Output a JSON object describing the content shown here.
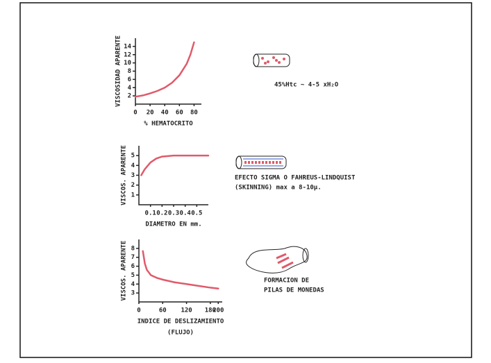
{
  "chart_data": [
    {
      "type": "line",
      "ylabel": "VISCOSIDAD APARENTE",
      "xlabel": [
        "% HEMATOCRITO"
      ],
      "x": [
        0,
        10,
        20,
        30,
        40,
        50,
        60,
        70,
        75,
        80
      ],
      "values": [
        1.8,
        2.1,
        2.6,
        3.2,
        4.0,
        5.2,
        7.0,
        9.8,
        12,
        15
      ],
      "color": "#e05a6a",
      "xlim": [
        0,
        90
      ],
      "ylim": [
        0,
        16
      ],
      "xticks": [
        0,
        20,
        40,
        60,
        80
      ],
      "yticks": [
        2,
        4,
        6,
        8,
        10,
        12,
        14
      ],
      "annotations": [
        "45%Htc ~ 4-5 xH₂O"
      ]
    },
    {
      "type": "line",
      "ylabel": "VISCOS. APARENTE",
      "xlabel": [
        "DIAMETRO EN mm."
      ],
      "x": [
        0.02,
        0.05,
        0.1,
        0.15,
        0.2,
        0.3,
        0.4,
        0.5,
        0.6
      ],
      "values": [
        3.0,
        3.6,
        4.3,
        4.7,
        4.9,
        5.0,
        5.0,
        5.0,
        5.0
      ],
      "color": "#e05a6a",
      "xlim": [
        0,
        0.6
      ],
      "ylim": [
        0,
        6
      ],
      "xticks": [
        0.1,
        0.2,
        0.3,
        0.4,
        0.5
      ],
      "yticks": [
        1,
        2,
        3,
        4,
        5
      ],
      "annotations": [
        "EFECTO SIGMA O FAHREUS-LINDQUIST",
        "(SKINNING) max a 8-10μ."
      ]
    },
    {
      "type": "line",
      "ylabel": "VISCOS. APARENTE",
      "xlabel": [
        "INDICE DE DESLIZAMIENTO",
        "(FLUJO)"
      ],
      "x": [
        10,
        15,
        20,
        30,
        45,
        60,
        90,
        120,
        150,
        180,
        200
      ],
      "values": [
        7.7,
        6.3,
        5.6,
        5.0,
        4.7,
        4.5,
        4.2,
        4.0,
        3.8,
        3.6,
        3.5
      ],
      "color": "#e05a6a",
      "xlim": [
        0,
        210
      ],
      "ylim": [
        2,
        9
      ],
      "xticks": [
        0,
        60,
        120,
        180,
        200
      ],
      "yticks": [
        3,
        4,
        5,
        6,
        7,
        8
      ],
      "annotations": [
        "FORMACION DE",
        "PILAS DE MONEDAS"
      ]
    }
  ]
}
